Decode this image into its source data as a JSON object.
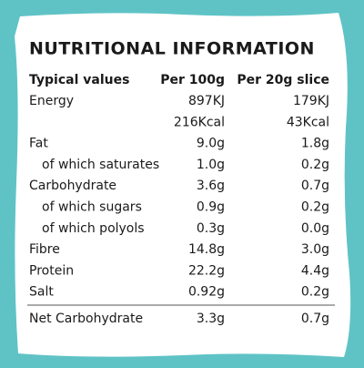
{
  "header": {
    "title": "NUTRITIONAL INFORMATION"
  },
  "table": {
    "columns": [
      "Typical values",
      "Per 100g",
      "Per 20g slice"
    ],
    "rows": [
      {
        "label": "Energy",
        "per_100g": [
          "897KJ",
          "216Kcal"
        ],
        "per_slice": [
          "179KJ",
          "43Kcal"
        ]
      },
      {
        "label": "Fat",
        "per_100g": [
          "9.0g"
        ],
        "per_slice": [
          "1.8g"
        ],
        "sub": [
          {
            "label": "of which saturates",
            "per_100g": [
              "1.0g"
            ],
            "per_slice": [
              "0.2g"
            ]
          }
        ]
      },
      {
        "label": "Carbohydrate",
        "per_100g": [
          "3.6g"
        ],
        "per_slice": [
          "0.7g"
        ],
        "sub": [
          {
            "label": "of which sugars",
            "per_100g": [
              "0.9g"
            ],
            "per_slice": [
              "0.2g"
            ]
          },
          {
            "label": "of which polyols",
            "per_100g": [
              "0.3g"
            ],
            "per_slice": [
              "0.0g"
            ]
          }
        ]
      },
      {
        "label": "Fibre",
        "per_100g": [
          "14.8g"
        ],
        "per_slice": [
          "3.0g"
        ]
      },
      {
        "label": "Protein",
        "per_100g": [
          "22.2g"
        ],
        "per_slice": [
          "4.4g"
        ]
      },
      {
        "label": "Salt",
        "per_100g": [
          "0.92g"
        ],
        "per_slice": [
          "0.2g"
        ]
      }
    ],
    "footer_row": {
      "label": "Net Carbohydrate",
      "per_100g": [
        "3.3g"
      ],
      "per_slice": [
        "0.7g"
      ]
    }
  }
}
